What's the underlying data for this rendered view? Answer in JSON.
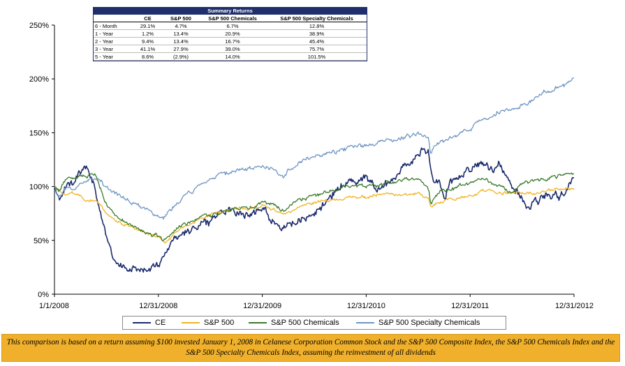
{
  "chart_data": {
    "type": "line",
    "title": "",
    "xlabel": "",
    "ylabel": "",
    "ylim": [
      0,
      250
    ],
    "yticks": [
      "0%",
      "50%",
      "100%",
      "150%",
      "200%",
      "250%"
    ],
    "xticks": [
      "1/1/2008",
      "12/31/2008",
      "12/31/2009",
      "12/31/2010",
      "12/31/2011",
      "12/31/2012"
    ],
    "grid": false,
    "legend_position": "bottom",
    "series": [
      {
        "name": "CE",
        "color": "#1a2a6c",
        "keypoints": [
          [
            0,
            100
          ],
          [
            0.04,
            85
          ],
          [
            0.1,
            100
          ],
          [
            0.2,
            110
          ],
          [
            0.3,
            117
          ],
          [
            0.38,
            100
          ],
          [
            0.42,
            85
          ],
          [
            0.46,
            70
          ],
          [
            0.5,
            55
          ],
          [
            0.56,
            35
          ],
          [
            0.64,
            26
          ],
          [
            0.74,
            24
          ],
          [
            0.82,
            24
          ],
          [
            0.9,
            22
          ],
          [
            0.95,
            25
          ],
          [
            1.0,
            28
          ],
          [
            1.05,
            35
          ],
          [
            1.1,
            45
          ],
          [
            1.2,
            55
          ],
          [
            1.3,
            60
          ],
          [
            1.4,
            65
          ],
          [
            1.5,
            70
          ],
          [
            1.6,
            76
          ],
          [
            1.7,
            80
          ],
          [
            1.8,
            76
          ],
          [
            1.9,
            73
          ],
          [
            2.0,
            82
          ],
          [
            2.1,
            70
          ],
          [
            2.2,
            62
          ],
          [
            2.3,
            65
          ],
          [
            2.4,
            68
          ],
          [
            2.5,
            75
          ],
          [
            2.6,
            85
          ],
          [
            2.7,
            95
          ],
          [
            2.8,
            103
          ],
          [
            2.9,
            105
          ],
          [
            3.0,
            110
          ],
          [
            3.1,
            98
          ],
          [
            3.2,
            102
          ],
          [
            3.3,
            113
          ],
          [
            3.4,
            120
          ],
          [
            3.5,
            128
          ],
          [
            3.55,
            138
          ],
          [
            3.6,
            132
          ],
          [
            3.62,
            118
          ],
          [
            3.64,
            105
          ],
          [
            3.66,
            100
          ],
          [
            3.7,
            105
          ],
          [
            3.76,
            88
          ],
          [
            3.8,
            105
          ],
          [
            3.9,
            108
          ],
          [
            4.0,
            115
          ],
          [
            4.05,
            120
          ],
          [
            4.12,
            125
          ],
          [
            4.2,
            115
          ],
          [
            4.28,
            120
          ],
          [
            4.35,
            112
          ],
          [
            4.42,
            100
          ],
          [
            4.5,
            90
          ],
          [
            4.55,
            80
          ],
          [
            4.6,
            85
          ],
          [
            4.7,
            90
          ],
          [
            4.8,
            95
          ],
          [
            4.85,
            88
          ],
          [
            4.9,
            94
          ],
          [
            4.95,
            100
          ],
          [
            5.0,
            108
          ]
        ]
      },
      {
        "name": "S&P 500",
        "color": "#f0b323",
        "keypoints": [
          [
            0,
            100
          ],
          [
            0.04,
            95
          ],
          [
            0.1,
            92
          ],
          [
            0.2,
            94
          ],
          [
            0.3,
            88
          ],
          [
            0.4,
            88
          ],
          [
            0.5,
            75
          ],
          [
            0.6,
            68
          ],
          [
            0.7,
            64
          ],
          [
            0.8,
            60
          ],
          [
            0.9,
            55
          ],
          [
            1.0,
            54
          ],
          [
            1.05,
            48
          ],
          [
            1.1,
            50
          ],
          [
            1.2,
            60
          ],
          [
            1.3,
            65
          ],
          [
            1.4,
            70
          ],
          [
            1.5,
            74
          ],
          [
            1.6,
            76
          ],
          [
            1.7,
            78
          ],
          [
            1.8,
            80
          ],
          [
            1.9,
            79
          ],
          [
            2.0,
            83
          ],
          [
            2.1,
            78
          ],
          [
            2.2,
            75
          ],
          [
            2.3,
            78
          ],
          [
            2.4,
            82
          ],
          [
            2.5,
            85
          ],
          [
            2.6,
            86
          ],
          [
            2.7,
            88
          ],
          [
            2.8,
            90
          ],
          [
            2.9,
            91
          ],
          [
            3.0,
            90
          ],
          [
            3.1,
            92
          ],
          [
            3.2,
            93
          ],
          [
            3.3,
            92
          ],
          [
            3.4,
            93
          ],
          [
            3.5,
            94
          ],
          [
            3.6,
            88
          ],
          [
            3.62,
            80
          ],
          [
            3.65,
            82
          ],
          [
            3.7,
            85
          ],
          [
            3.8,
            88
          ],
          [
            3.9,
            90
          ],
          [
            4.0,
            92
          ],
          [
            4.1,
            95
          ],
          [
            4.2,
            97
          ],
          [
            4.3,
            95
          ],
          [
            4.4,
            94
          ],
          [
            4.5,
            95
          ],
          [
            4.6,
            94
          ],
          [
            4.7,
            95
          ],
          [
            4.8,
            97
          ],
          [
            4.9,
            98
          ],
          [
            5.0,
            97
          ]
        ]
      },
      {
        "name": "S&P 500 Chemicals",
        "color": "#3a7a2a",
        "keypoints": [
          [
            0,
            100
          ],
          [
            0.04,
            96
          ],
          [
            0.1,
            105
          ],
          [
            0.2,
            108
          ],
          [
            0.3,
            110
          ],
          [
            0.4,
            108
          ],
          [
            0.45,
            95
          ],
          [
            0.5,
            82
          ],
          [
            0.6,
            72
          ],
          [
            0.7,
            66
          ],
          [
            0.8,
            62
          ],
          [
            0.9,
            58
          ],
          [
            1.0,
            55
          ],
          [
            1.05,
            50
          ],
          [
            1.1,
            55
          ],
          [
            1.2,
            62
          ],
          [
            1.3,
            65
          ],
          [
            1.4,
            72
          ],
          [
            1.5,
            75
          ],
          [
            1.6,
            76
          ],
          [
            1.7,
            78
          ],
          [
            1.8,
            81
          ],
          [
            1.9,
            80
          ],
          [
            2.0,
            85
          ],
          [
            2.1,
            82
          ],
          [
            2.2,
            78
          ],
          [
            2.3,
            84
          ],
          [
            2.4,
            88
          ],
          [
            2.5,
            92
          ],
          [
            2.6,
            95
          ],
          [
            2.7,
            97
          ],
          [
            2.8,
            100
          ],
          [
            2.9,
            102
          ],
          [
            3.0,
            100
          ],
          [
            3.1,
            102
          ],
          [
            3.2,
            103
          ],
          [
            3.3,
            104
          ],
          [
            3.4,
            106
          ],
          [
            3.5,
            108
          ],
          [
            3.6,
            98
          ],
          [
            3.62,
            85
          ],
          [
            3.66,
            90
          ],
          [
            3.7,
            95
          ],
          [
            3.8,
            96
          ],
          [
            3.9,
            100
          ],
          [
            4.0,
            103
          ],
          [
            4.1,
            107
          ],
          [
            4.2,
            104
          ],
          [
            4.3,
            100
          ],
          [
            4.4,
            95
          ],
          [
            4.45,
            98
          ],
          [
            4.5,
            102
          ],
          [
            4.6,
            105
          ],
          [
            4.7,
            107
          ],
          [
            4.8,
            108
          ],
          [
            4.9,
            110
          ],
          [
            5.0,
            112
          ]
        ]
      },
      {
        "name": "S&P 500 Specialty Chemicals",
        "color": "#6f95c2",
        "keypoints": [
          [
            0,
            100
          ],
          [
            0.04,
            90
          ],
          [
            0.1,
            97
          ],
          [
            0.2,
            99
          ],
          [
            0.3,
            104
          ],
          [
            0.4,
            107
          ],
          [
            0.5,
            100
          ],
          [
            0.6,
            93
          ],
          [
            0.7,
            88
          ],
          [
            0.8,
            82
          ],
          [
            0.9,
            78
          ],
          [
            1.0,
            74
          ],
          [
            1.05,
            70
          ],
          [
            1.1,
            76
          ],
          [
            1.2,
            85
          ],
          [
            1.3,
            95
          ],
          [
            1.4,
            100
          ],
          [
            1.5,
            105
          ],
          [
            1.6,
            110
          ],
          [
            1.7,
            114
          ],
          [
            1.8,
            116
          ],
          [
            1.9,
            117
          ],
          [
            2.0,
            120
          ],
          [
            2.1,
            118
          ],
          [
            2.2,
            110
          ],
          [
            2.3,
            118
          ],
          [
            2.4,
            125
          ],
          [
            2.5,
            128
          ],
          [
            2.6,
            130
          ],
          [
            2.7,
            132
          ],
          [
            2.8,
            135
          ],
          [
            2.9,
            138
          ],
          [
            3.0,
            137
          ],
          [
            3.1,
            140
          ],
          [
            3.2,
            142
          ],
          [
            3.3,
            144
          ],
          [
            3.4,
            148
          ],
          [
            3.5,
            150
          ],
          [
            3.6,
            145
          ],
          [
            3.62,
            130
          ],
          [
            3.66,
            138
          ],
          [
            3.7,
            140
          ],
          [
            3.8,
            145
          ],
          [
            3.9,
            150
          ],
          [
            4.0,
            155
          ],
          [
            4.1,
            160
          ],
          [
            4.2,
            163
          ],
          [
            4.3,
            170
          ],
          [
            4.4,
            172
          ],
          [
            4.5,
            176
          ],
          [
            4.6,
            180
          ],
          [
            4.7,
            185
          ],
          [
            4.8,
            190
          ],
          [
            4.9,
            195
          ],
          [
            5.0,
            201
          ]
        ]
      }
    ]
  },
  "summary": {
    "title": "Summary Returns",
    "columns": [
      "",
      "CE",
      "S&P 500",
      "S&P 500 Chemicals",
      "S&P 500 Specialty Chemicals"
    ],
    "rows": [
      [
        "6 - Month",
        "29.1%",
        "4.7%",
        "6.7%",
        "12.8%"
      ],
      [
        "1 - Year",
        "1.2%",
        "13.4%",
        "20.9%",
        "38.9%"
      ],
      [
        "2 - Year",
        "9.4%",
        "13.4%",
        "16.7%",
        "45.4%"
      ],
      [
        "3 - Year",
        "41.1%",
        "27.9%",
        "39.0%",
        "75.7%"
      ],
      [
        "5 - Year",
        "8.6%",
        "(2.9%)",
        "14.0%",
        "101.5%"
      ]
    ]
  },
  "footnote": "This comparison is based on a return assuming $100 invested January 1, 2008 in Celanese Corporation Common Stock and the S&P 500 Composite Index, the S&P 500 Chemicals Index and the S&P 500 Specialty Chemicals Index, assuming the reinvestment of all dividends"
}
